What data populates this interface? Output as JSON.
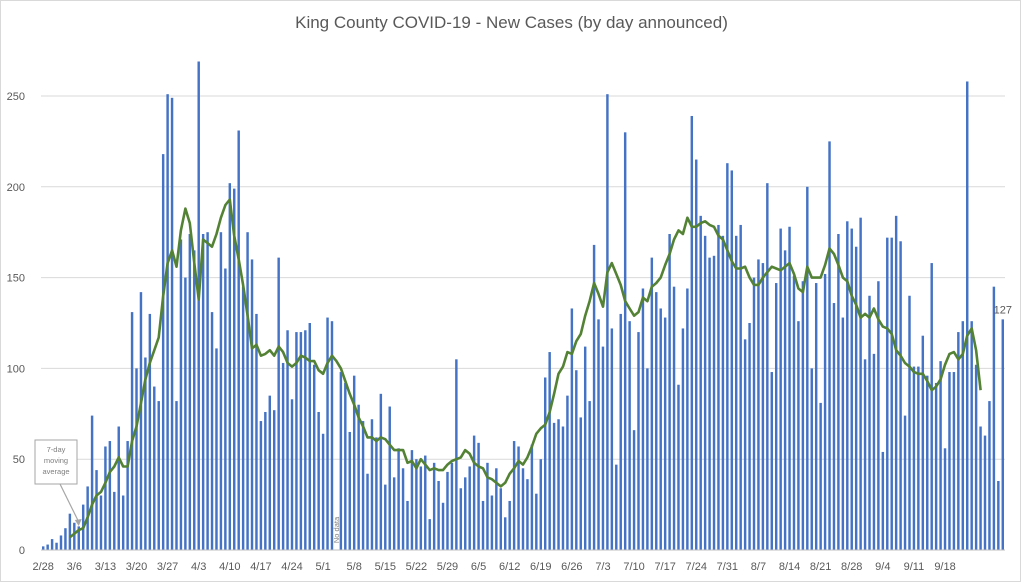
{
  "chart_data": {
    "type": "bar",
    "title": "King County COVID-19 - New Cases (by day announced)",
    "xlabel": "",
    "ylabel": "",
    "ylim": [
      0,
      270
    ],
    "yticks": [
      0,
      50,
      100,
      150,
      200,
      250
    ],
    "grid": true,
    "start_date": "2/28",
    "x_tick_labels": [
      "2/28",
      "3/6",
      "3/13",
      "3/20",
      "3/27",
      "4/3",
      "4/10",
      "4/17",
      "4/24",
      "5/1",
      "5/8",
      "5/15",
      "5/22",
      "5/29",
      "6/5",
      "6/12",
      "6/19",
      "6/26",
      "7/3",
      "7/10",
      "7/17",
      "7/24",
      "7/31",
      "8/7",
      "8/14",
      "8/21",
      "8/28",
      "9/4",
      "9/11",
      "9/18"
    ],
    "series": [
      {
        "type": "bar",
        "values": [
          2,
          3,
          6,
          4,
          8,
          12,
          20,
          15,
          13,
          25,
          35,
          74,
          44,
          30,
          57,
          60,
          32,
          68,
          30,
          60,
          131,
          100,
          142,
          106,
          130,
          90,
          82,
          218,
          251,
          249,
          82,
          171,
          150,
          174,
          165,
          269,
          174,
          175,
          131,
          111,
          175,
          155,
          202,
          199,
          231,
          145,
          175,
          160,
          130,
          71,
          76,
          85,
          77,
          161,
          103,
          121,
          83,
          120,
          120,
          121,
          125,
          102,
          76,
          64,
          128,
          126,
          0,
          98,
          92,
          65,
          96,
          80,
          71,
          42,
          72,
          62,
          86,
          36,
          79,
          40,
          56,
          45,
          27,
          55,
          50,
          46,
          52,
          17,
          48,
          38,
          26,
          43,
          48,
          105,
          34,
          40,
          46,
          63,
          59,
          27,
          48,
          30,
          45,
          34,
          18,
          27,
          60,
          57,
          45,
          39,
          58,
          31,
          50,
          95,
          109,
          70,
          72,
          68,
          85,
          133,
          99,
          73,
          112,
          82,
          168,
          127,
          112,
          251,
          122,
          47,
          130,
          230,
          126,
          66,
          120,
          144,
          100,
          161,
          142,
          133,
          128,
          174,
          145,
          91,
          122,
          144,
          239,
          215,
          184,
          173,
          161,
          162,
          179,
          173,
          213,
          209,
          173,
          179,
          116,
          125,
          150,
          160,
          158,
          202,
          98,
          147,
          177,
          165,
          178,
          151,
          126,
          148,
          200,
          100,
          147,
          81,
          152,
          225,
          136,
          174,
          128,
          181,
          177,
          167,
          183,
          105,
          140,
          108,
          148,
          54,
          172,
          172,
          184,
          170,
          74,
          140,
          101,
          101,
          118,
          96,
          158,
          92,
          104,
          56,
          98,
          98,
          120,
          126,
          258,
          126,
          102,
          68,
          63,
          82,
          145,
          38,
          127
        ],
        "last_label": "127"
      },
      {
        "type": "line",
        "name": "7-day moving average",
        "values": [
          null,
          null,
          null,
          null,
          null,
          null,
          7,
          9,
          11,
          12,
          18,
          25,
          30,
          32,
          37,
          43,
          46,
          51,
          46,
          46,
          60,
          68,
          81,
          94,
          103,
          110,
          117,
          140,
          158,
          165,
          156,
          176,
          188,
          180,
          158,
          138,
          171,
          169,
          167,
          174,
          183,
          190,
          193,
          173,
          160,
          146,
          129,
          111,
          113,
          107,
          108,
          110,
          107,
          112,
          109,
          103,
          101,
          103,
          107,
          106,
          104,
          104,
          99,
          97,
          103,
          107,
          104,
          100,
          93,
          86,
          80,
          73,
          68,
          62,
          62,
          60,
          62,
          61,
          58,
          55,
          55,
          55,
          48,
          49,
          45,
          50,
          47,
          44,
          45,
          44,
          44,
          47,
          49,
          50,
          51,
          55,
          53,
          48,
          46,
          45,
          40,
          39,
          37,
          35,
          37,
          42,
          45,
          49,
          47,
          51,
          57,
          64,
          67,
          69,
          76,
          86,
          97,
          101,
          109,
          108,
          115,
          119,
          129,
          137,
          147,
          141,
          134,
          153,
          158,
          152,
          146,
          137,
          133,
          129,
          131,
          139,
          137,
          145,
          147,
          150,
          157,
          163,
          171,
          176,
          174,
          183,
          178,
          178,
          180,
          181,
          179,
          178,
          173,
          171,
          165,
          159,
          155,
          155,
          156,
          150,
          146,
          146,
          150,
          153,
          156,
          155,
          154,
          156,
          158,
          152,
          144,
          142,
          156,
          150,
          150,
          150,
          157,
          166,
          163,
          157,
          150,
          148,
          140,
          135,
          128,
          130,
          128,
          133,
          127,
          123,
          122,
          119,
          110,
          107,
          103,
          101,
          98,
          97,
          97,
          93,
          88,
          90,
          94,
          102,
          108,
          109,
          105,
          108,
          118,
          122,
          110,
          88
        ]
      }
    ],
    "annotations": [
      {
        "text": [
          "7-day",
          "moving",
          "average"
        ],
        "points_to": "7-day moving average"
      },
      {
        "text": "No data",
        "x_label": "5/1"
      }
    ]
  }
}
